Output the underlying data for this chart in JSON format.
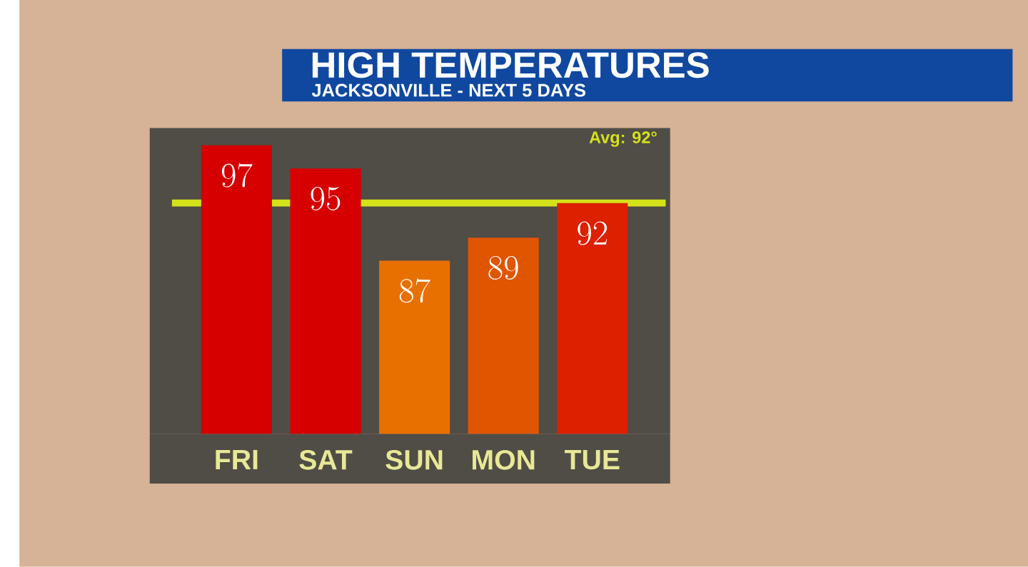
{
  "chart_data": {
    "type": "bar",
    "title": "HIGH TEMPERATURES",
    "subtitle": "JACKSONVILLE - NEXT 5 DAYS",
    "categories": [
      "FRI",
      "SAT",
      "SUN",
      "MON",
      "TUE"
    ],
    "values": [
      97,
      95,
      87,
      89,
      92
    ],
    "colors": [
      "#d60000",
      "#d60000",
      "#e87000",
      "#e05500",
      "#dc2000"
    ],
    "ylim": [
      72,
      98.5
    ],
    "data_labels": true,
    "tick_labels": "x",
    "ref_lines": [
      {
        "axis": "y",
        "value": 92,
        "label": "Avg: 92°",
        "color": "#d4e21a"
      }
    ]
  }
}
